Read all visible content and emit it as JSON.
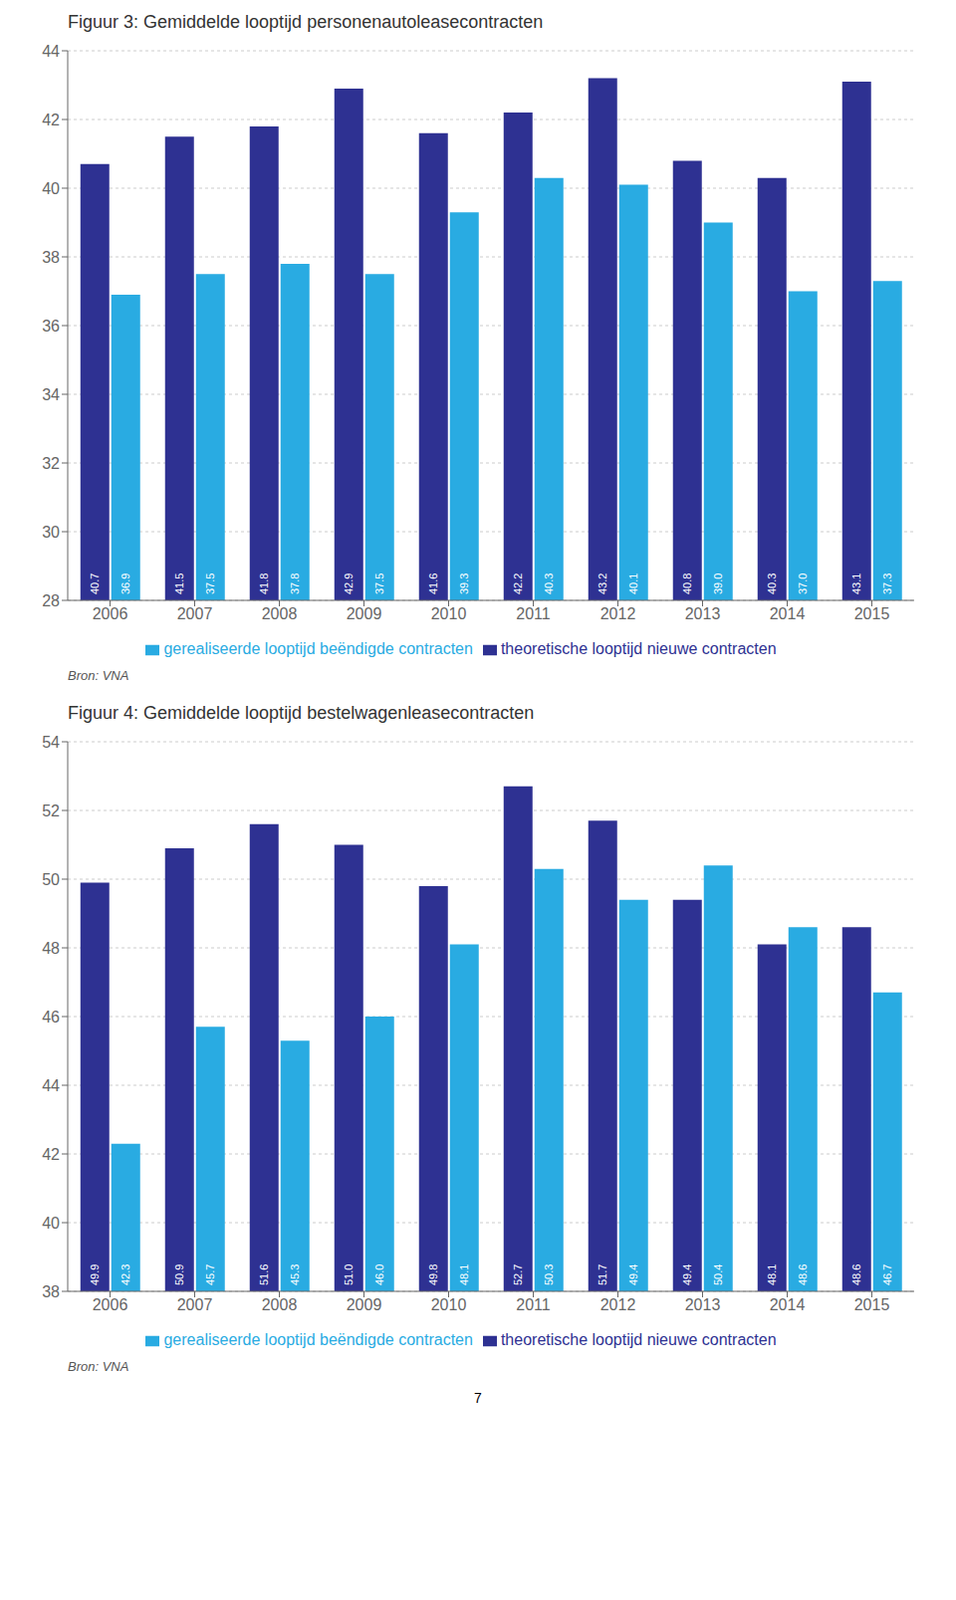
{
  "chart_data": [
    {
      "type": "bar",
      "title": "Figuur 3: Gemiddelde looptijd personenautoleasecontracten",
      "categories": [
        2006,
        2007,
        2008,
        2009,
        2010,
        2011,
        2012,
        2013,
        2014,
        2015
      ],
      "series": [
        {
          "name": "theoretische looptijd nieuwe contracten",
          "color": "#2E3192",
          "values": [
            40.7,
            41.5,
            41.8,
            42.9,
            41.6,
            42.2,
            43.2,
            40.8,
            40.3,
            43.1
          ],
          "value_labels": [
            "40.7",
            "41.5",
            "41.8",
            "42.9",
            "41.6",
            "42.2",
            "43.2",
            "40.8",
            "40.3",
            "43.1"
          ]
        },
        {
          "name": "gerealiseerde looptijd beëndigde contracten",
          "color": "#29ABE2",
          "values": [
            36.9,
            37.5,
            37.8,
            37.5,
            39.3,
            40.3,
            40.1,
            39.0,
            37.0,
            37.3
          ],
          "value_labels": [
            "36.9",
            "37.5",
            "37.8",
            "37.5",
            "39.3",
            "40.3",
            "40.1",
            "39.0",
            "37.0",
            "37.3"
          ]
        }
      ],
      "ylim": [
        28,
        44
      ],
      "yticks": [
        28,
        30,
        32,
        34,
        36,
        38,
        40,
        42,
        44
      ],
      "grid": true,
      "data_labels": true,
      "legend": "bottom",
      "annotations": [
        "Bron: VNA"
      ]
    },
    {
      "type": "bar",
      "title": "Figuur 4: Gemiddelde looptijd bestelwagenleasecontracten",
      "categories": [
        2006,
        2007,
        2008,
        2009,
        2010,
        2011,
        2012,
        2013,
        2014,
        2015
      ],
      "series": [
        {
          "name": "theoretische looptijd nieuwe contracten",
          "color": "#2E3192",
          "values": [
            49.9,
            50.9,
            51.6,
            51.0,
            49.8,
            52.7,
            51.7,
            49.4,
            48.1,
            48.6
          ],
          "value_labels": [
            "49.9",
            "50.9",
            "51.6",
            "51.0",
            "49.8",
            "52.7",
            "51.7",
            "49.4",
            "48.1",
            "48.6"
          ]
        },
        {
          "name": "gerealiseerde looptijd beëndigde contracten",
          "color": "#29ABE2",
          "values": [
            42.3,
            45.7,
            45.3,
            46.0,
            48.1,
            50.3,
            49.4,
            50.4,
            48.6,
            46.7
          ],
          "value_labels": [
            "42.3",
            "45.7",
            "45.3",
            "46.0",
            "48.1",
            "50.3",
            "49.4",
            "50.4",
            "48.6",
            "46.7"
          ]
        }
      ],
      "ylim": [
        38,
        54
      ],
      "yticks": [
        38,
        40,
        42,
        44,
        46,
        48,
        50,
        52,
        54
      ],
      "grid": true,
      "data_labels": true,
      "legend": "bottom",
      "annotations": [
        "Bron: VNA"
      ]
    }
  ],
  "annotations": [
    "7"
  ]
}
